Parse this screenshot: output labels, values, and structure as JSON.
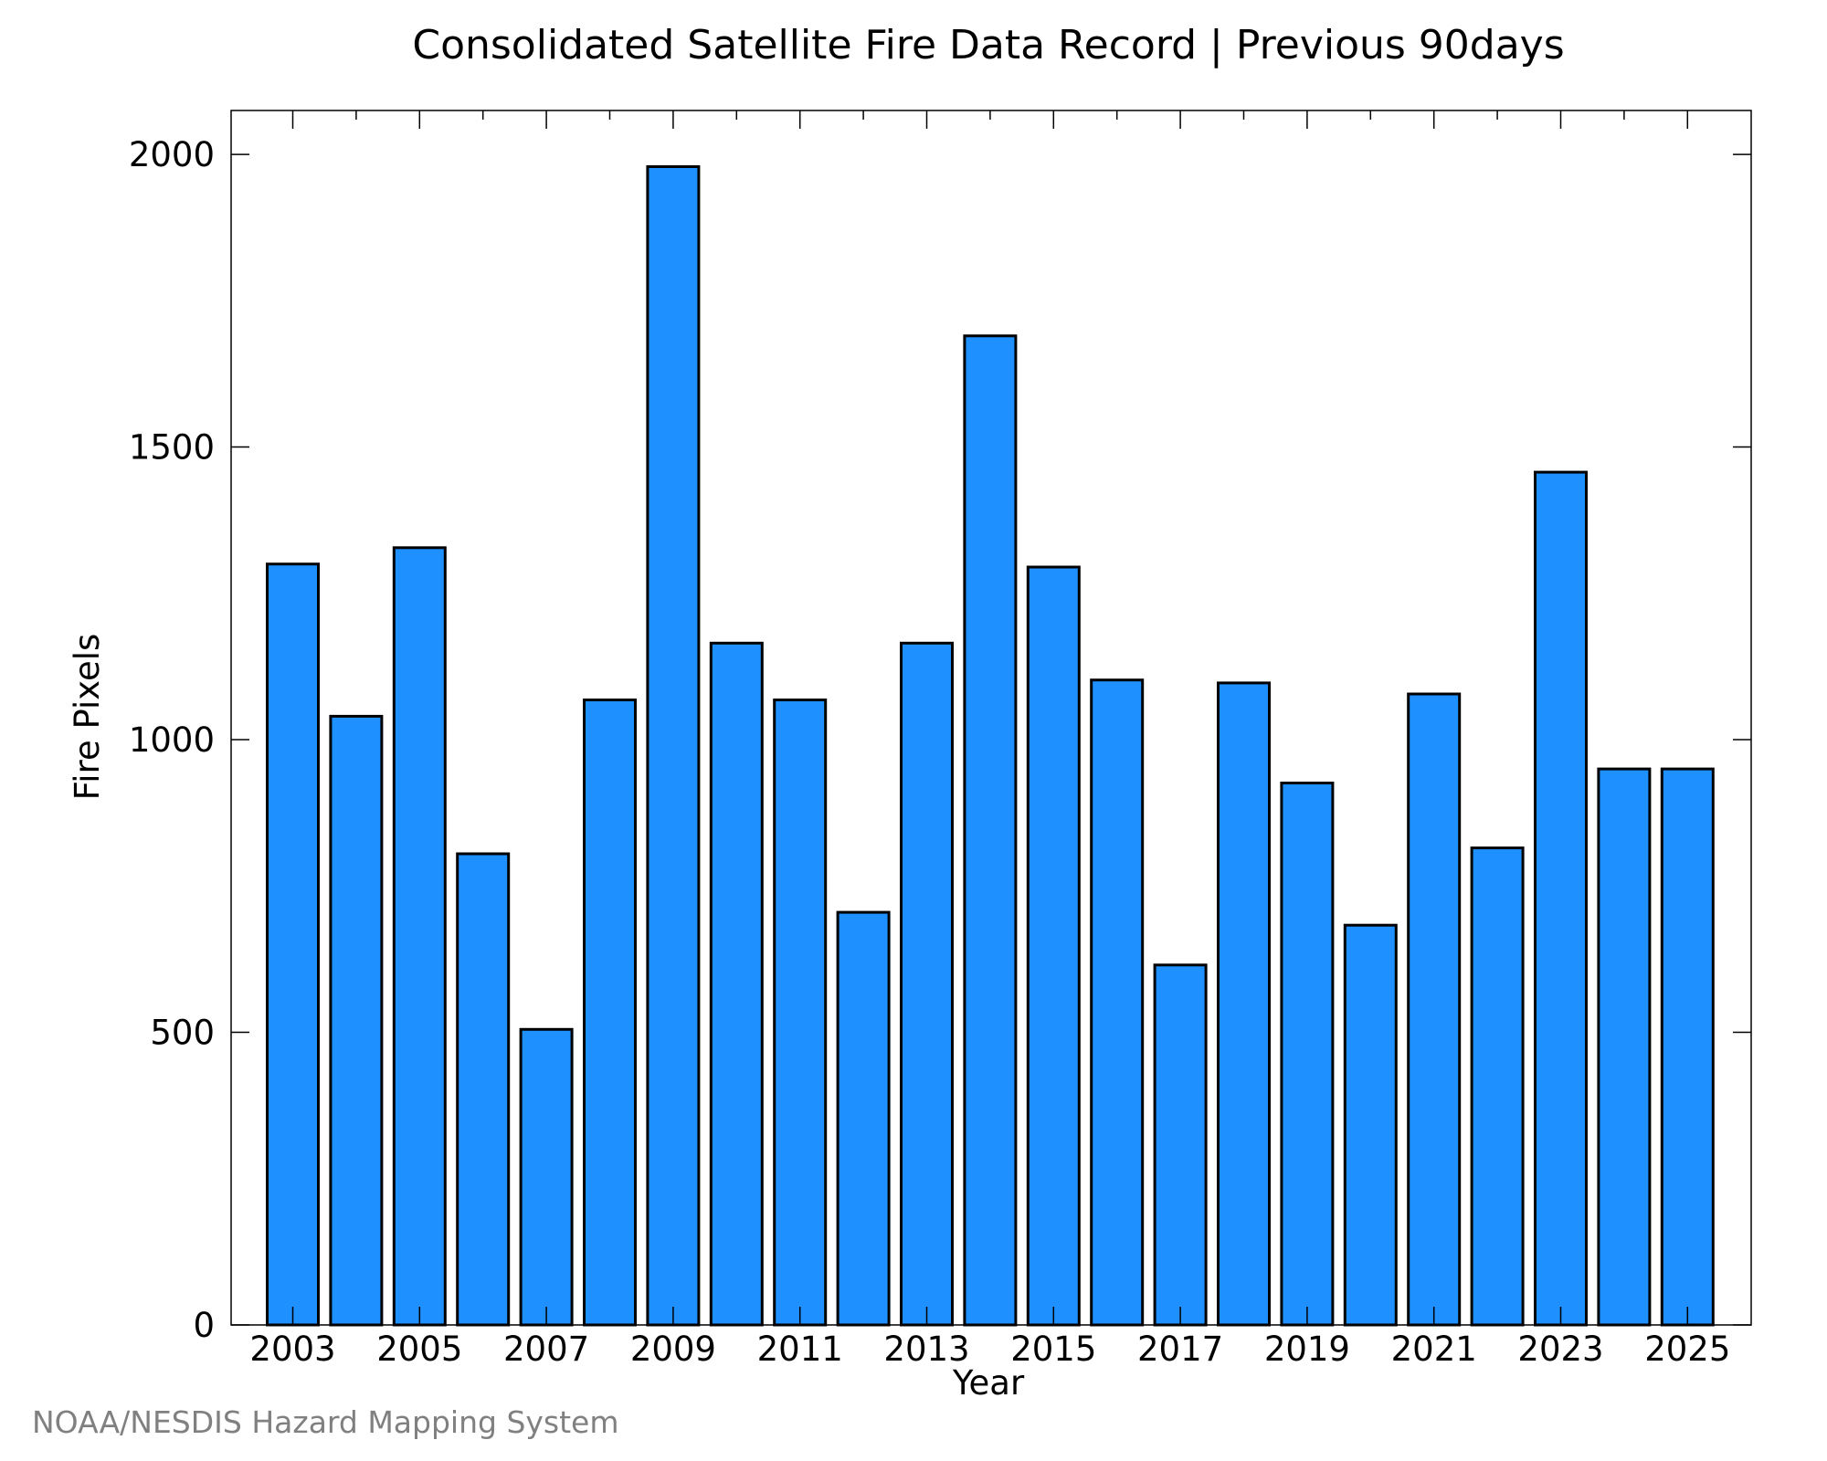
{
  "chart_data": {
    "type": "bar",
    "title": "Consolidated Satellite Fire Data Record | Previous 90days",
    "xlabel": "Year",
    "ylabel": "Fire Pixels",
    "categories": [
      "2003",
      "2004",
      "2005",
      "2006",
      "2007",
      "2008",
      "2009",
      "2010",
      "2011",
      "2012",
      "2013",
      "2014",
      "2015",
      "2016",
      "2017",
      "2018",
      "2019",
      "2020",
      "2021",
      "2022",
      "2023",
      "2024",
      "2025"
    ],
    "values": [
      1300,
      1040,
      1328,
      805,
      505,
      1068,
      1979,
      1165,
      1068,
      705,
      1165,
      1690,
      1295,
      1102,
      615,
      1097,
      926,
      683,
      1078,
      815,
      1457,
      950,
      950
    ],
    "x_tick_labels": [
      "2003",
      "2005",
      "2007",
      "2009",
      "2011",
      "2013",
      "2015",
      "2017",
      "2019",
      "2021",
      "2023",
      "2025"
    ],
    "y_ticks": [
      "0",
      "500",
      "1000",
      "1500",
      "2000"
    ],
    "ylim": [
      0,
      2075
    ],
    "grid": false,
    "bar_color": "#1e90ff",
    "bar_edge_color": "#000000"
  },
  "credit": "NOAA/NESDIS Hazard Mapping System"
}
